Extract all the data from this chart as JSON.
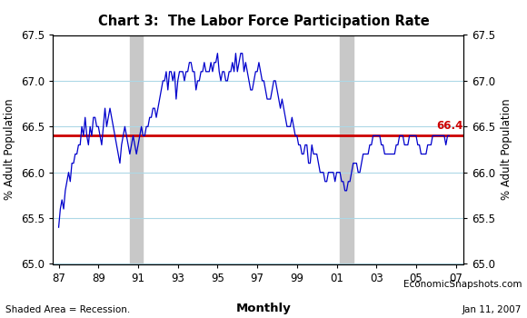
{
  "title": "Chart 3:  The Labor Force Participation Rate",
  "ylabel": "% Adult Population",
  "reference_line": 66.4,
  "reference_label": "66.4",
  "ylim": [
    65.0,
    67.5
  ],
  "yticks": [
    65.0,
    65.5,
    66.0,
    66.5,
    67.0,
    67.5
  ],
  "xlim": [
    1986.7,
    2007.4
  ],
  "xtick_positions": [
    1987,
    1989,
    1991,
    1993,
    1995,
    1997,
    1999,
    2001,
    2003,
    2005,
    2007
  ],
  "xtick_labels": [
    "87",
    "89",
    "91",
    "93",
    "95",
    "97",
    "99",
    "01",
    "03",
    "05",
    "07"
  ],
  "recession_shades": [
    {
      "start": 1990.583,
      "end": 1991.25
    },
    {
      "start": 2001.167,
      "end": 2001.833
    }
  ],
  "line_color": "#0000cc",
  "reference_color": "#cc0000",
  "shade_color": "#c8c8c8",
  "grid_color": "#add8e6",
  "footer_left": "Shaded Area = Recession.",
  "footer_center": "Monthly",
  "footer_right_line1": "EconomicSnapshots.com",
  "footer_right_line2": "Jan 11, 2007",
  "data": [
    65.4,
    65.6,
    65.7,
    65.6,
    65.8,
    65.9,
    66.0,
    65.9,
    66.1,
    66.1,
    66.2,
    66.2,
    66.3,
    66.3,
    66.5,
    66.4,
    66.6,
    66.4,
    66.3,
    66.5,
    66.4,
    66.6,
    66.6,
    66.5,
    66.5,
    66.4,
    66.3,
    66.5,
    66.7,
    66.5,
    66.6,
    66.7,
    66.6,
    66.5,
    66.4,
    66.3,
    66.2,
    66.1,
    66.3,
    66.4,
    66.5,
    66.4,
    66.3,
    66.2,
    66.3,
    66.4,
    66.3,
    66.2,
    66.3,
    66.4,
    66.5,
    66.4,
    66.4,
    66.5,
    66.5,
    66.6,
    66.6,
    66.7,
    66.7,
    66.6,
    66.7,
    66.8,
    66.9,
    67.0,
    67.0,
    67.1,
    66.9,
    67.1,
    67.1,
    67.0,
    67.1,
    66.8,
    67.0,
    67.1,
    67.1,
    67.1,
    67.0,
    67.1,
    67.1,
    67.2,
    67.2,
    67.1,
    67.1,
    66.9,
    67.0,
    67.0,
    67.1,
    67.1,
    67.2,
    67.1,
    67.1,
    67.1,
    67.2,
    67.1,
    67.2,
    67.2,
    67.3,
    67.1,
    67.0,
    67.1,
    67.1,
    67.0,
    67.0,
    67.1,
    67.1,
    67.2,
    67.1,
    67.3,
    67.1,
    67.2,
    67.3,
    67.3,
    67.1,
    67.2,
    67.1,
    67.0,
    66.9,
    66.9,
    67.0,
    67.1,
    67.1,
    67.2,
    67.1,
    67.0,
    67.0,
    66.9,
    66.8,
    66.8,
    66.8,
    66.9,
    67.0,
    67.0,
    66.9,
    66.8,
    66.7,
    66.8,
    66.7,
    66.6,
    66.5,
    66.5,
    66.5,
    66.6,
    66.5,
    66.4,
    66.4,
    66.3,
    66.3,
    66.2,
    66.2,
    66.3,
    66.3,
    66.1,
    66.1,
    66.3,
    66.2,
    66.2,
    66.2,
    66.1,
    66.0,
    66.0,
    66.0,
    65.9,
    65.9,
    66.0,
    66.0,
    66.0,
    66.0,
    65.9,
    66.0,
    66.0,
    66.0,
    65.9,
    65.9,
    65.8,
    65.8,
    65.9,
    65.9,
    66.0,
    66.1,
    66.1,
    66.1,
    66.0,
    66.0,
    66.1,
    66.2,
    66.2,
    66.2,
    66.2,
    66.3,
    66.3,
    66.4,
    66.4,
    66.4,
    66.4,
    66.4,
    66.3,
    66.3,
    66.2,
    66.2,
    66.2,
    66.2,
    66.2,
    66.2,
    66.2,
    66.3,
    66.3,
    66.4,
    66.4,
    66.4,
    66.3,
    66.3,
    66.3,
    66.4,
    66.4,
    66.4,
    66.4,
    66.4,
    66.3,
    66.3,
    66.2,
    66.2,
    66.2,
    66.2,
    66.3,
    66.3,
    66.3,
    66.4,
    66.4,
    66.4,
    66.4,
    66.4,
    66.4,
    66.4,
    66.4,
    66.3,
    66.4,
    66.4
  ]
}
